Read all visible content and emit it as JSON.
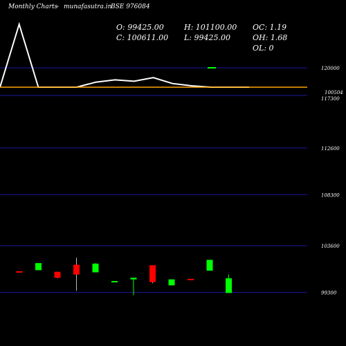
{
  "header": {
    "site": "Monthly Charts",
    "separator": "-",
    "domain": "munafasutra.in",
    "symbol": "BSE 976084"
  },
  "ohlc": {
    "open": "O: 99425.00",
    "high": "H: 101100.00",
    "oc": "OC: 1.19",
    "close": "C: 100611.00",
    "low": "L: 99425.00",
    "oh": "OH: 1.68",
    "ol": "OL: 0"
  },
  "colors": {
    "background": "#000000",
    "up": "#00ff00",
    "down": "#ff0000",
    "neutral": "#ffffff",
    "grid": "#1a1aa0",
    "volume_line": "#ffffff",
    "volume_avg": "#ffa500"
  },
  "chart_data": [
    {
      "type": "line",
      "name": "volume",
      "x": [
        0,
        1,
        2,
        3,
        4,
        5,
        6,
        7,
        8,
        9,
        10,
        11,
        12,
        13
      ],
      "values": [
        0,
        1380,
        0,
        0,
        0,
        110,
        160,
        130,
        210,
        80,
        30,
        0,
        0,
        0
      ],
      "avg": 0,
      "y_ticks": [
        {
          "value": 120000,
          "label": "120000"
        }
      ],
      "last_label": "100504"
    },
    {
      "type": "candlestick",
      "name": "price",
      "y_ticks": [
        {
          "value": 117300,
          "label": "117300"
        },
        {
          "value": 112600,
          "label": "112600"
        },
        {
          "value": 108300,
          "label": "108300"
        },
        {
          "value": 103600,
          "label": "103600"
        },
        {
          "value": 99300,
          "label": "99300"
        }
      ],
      "ylim": [
        98700,
        117300
      ],
      "candles": [
        {
          "o": 101250,
          "h": 101250,
          "l": 101250,
          "c": 101150
        },
        {
          "o": 101350,
          "h": 102000,
          "l": 101350,
          "c": 102000
        },
        {
          "o": 101200,
          "h": 101200,
          "l": 100600,
          "c": 100650
        },
        {
          "o": 101850,
          "h": 102500,
          "l": 99450,
          "c": 100950
        },
        {
          "o": 101150,
          "h": 102000,
          "l": 101150,
          "c": 101950
        },
        {
          "o": 100350,
          "h": 100350,
          "l": 100350,
          "c": 100350
        },
        {
          "o": 100500,
          "h": 100650,
          "l": 99050,
          "c": 100650
        },
        {
          "o": 101800,
          "h": 101800,
          "l": 100150,
          "c": 100250
        },
        {
          "o": 99950,
          "h": 100500,
          "l": 99950,
          "c": 100500
        },
        {
          "o": 100550,
          "h": 100550,
          "l": 100550,
          "c": 100450
        },
        {
          "o": 101300,
          "h": 102300,
          "l": 101300,
          "c": 102300
        },
        {
          "o": 99250,
          "h": 100950,
          "l": 99250,
          "c": 100600
        }
      ]
    }
  ]
}
